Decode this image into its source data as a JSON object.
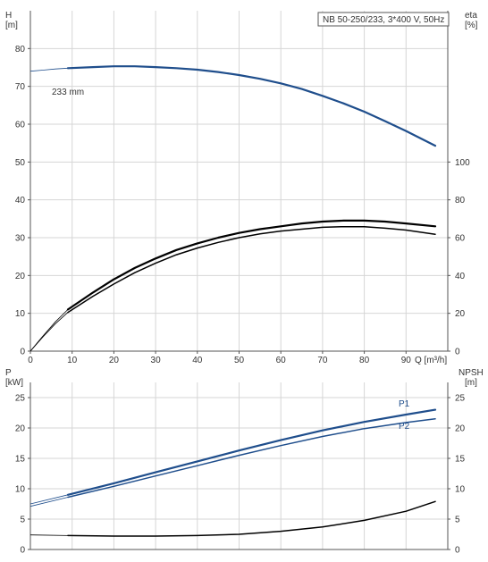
{
  "chart_data": [
    {
      "type": "line",
      "panel": "top",
      "title": "NB 50-250/233, 3*400 V, 50Hz",
      "xlabel": "Q [m³/h]",
      "ylabel_left": [
        "H",
        "[m]"
      ],
      "ylabel_right": [
        "eta",
        "[%]"
      ],
      "xlim": [
        0,
        100
      ],
      "ylim_left": [
        0,
        90
      ],
      "ylim_right": [
        0,
        180
      ],
      "x_ticks": [
        0,
        10,
        20,
        30,
        40,
        50,
        60,
        70,
        80,
        90
      ],
      "y_ticks_left": [
        0,
        10,
        20,
        30,
        40,
        50,
        60,
        70,
        80
      ],
      "y_ticks_right": [
        0,
        20,
        40,
        60,
        80,
        100
      ],
      "grid": true,
      "annotations": [
        {
          "text": "233 mm",
          "x": 9,
          "y": 75.5
        }
      ],
      "series": [
        {
          "name": "233 mm",
          "axis": "left",
          "color": "#1f4e8c",
          "x": [
            9,
            15,
            20,
            25,
            30,
            35,
            40,
            45,
            50,
            55,
            60,
            65,
            70,
            75,
            80,
            85,
            90,
            97
          ],
          "y": [
            74.8,
            75.1,
            75.3,
            75.3,
            75.1,
            74.8,
            74.4,
            73.8,
            73.0,
            72.0,
            70.8,
            69.3,
            67.5,
            65.5,
            63.3,
            60.8,
            58.2,
            54.3
          ],
          "ext_x": [
            0,
            3,
            6,
            9
          ],
          "ext_y": [
            74.0,
            74.3,
            74.6,
            74.8
          ]
        },
        {
          "axis": "right",
          "color": "#000000",
          "x": [
            9,
            15,
            20,
            25,
            30,
            35,
            40,
            45,
            50,
            55,
            60,
            65,
            70,
            75,
            80,
            85,
            90,
            97
          ],
          "y": [
            22.0,
            31.0,
            38.0,
            44.0,
            49.0,
            53.5,
            57.0,
            60.0,
            62.5,
            64.5,
            66.0,
            67.5,
            68.5,
            69.0,
            69.0,
            68.5,
            67.5,
            66.0
          ],
          "ext_x": [
            0,
            3,
            6,
            9
          ],
          "ext_y": [
            0,
            8.0,
            15.5,
            22.0
          ]
        },
        {
          "axis": "right",
          "color": "#000000",
          "x": [
            9,
            15,
            20,
            25,
            30,
            35,
            40,
            45,
            50,
            55,
            60,
            65,
            70,
            75,
            80,
            85,
            90,
            97
          ],
          "y": [
            20.5,
            29.0,
            35.5,
            41.5,
            46.5,
            51.0,
            54.5,
            57.5,
            60.0,
            62.0,
            63.5,
            64.5,
            65.5,
            65.8,
            65.8,
            65.0,
            64.0,
            61.8
          ],
          "ext_x": [
            0,
            3,
            6,
            9
          ],
          "ext_y": [
            0,
            7.5,
            14.5,
            20.5
          ]
        }
      ]
    },
    {
      "type": "line",
      "panel": "bottom",
      "xlim": [
        0,
        100
      ],
      "ylabel_left": [
        "P",
        "[kW]"
      ],
      "ylabel_right": [
        "NPSH",
        "[m]"
      ],
      "ylim_left": [
        0,
        27.5
      ],
      "ylim_right": [
        0,
        27.5
      ],
      "y_ticks_left": [
        0,
        5,
        10,
        15,
        20,
        25
      ],
      "y_ticks_right": [
        0,
        5,
        10,
        15,
        20,
        25
      ],
      "grid": true,
      "series": [
        {
          "name": "P1",
          "axis": "left",
          "color": "#1f4e8c",
          "x": [
            9,
            20,
            30,
            40,
            50,
            60,
            70,
            80,
            90,
            97
          ],
          "y": [
            9.0,
            10.9,
            12.7,
            14.5,
            16.3,
            18.0,
            19.6,
            21.0,
            22.2,
            23.0
          ],
          "ext_x": [
            0,
            9
          ],
          "ext_y": [
            7.5,
            9.0
          ]
        },
        {
          "name": "P2",
          "axis": "left",
          "color": "#1f4e8c",
          "x": [
            9,
            20,
            30,
            40,
            50,
            60,
            70,
            80,
            90,
            97
          ],
          "y": [
            8.6,
            10.4,
            12.1,
            13.8,
            15.5,
            17.1,
            18.6,
            19.9,
            20.9,
            21.5
          ],
          "ext_x": [
            0,
            9
          ],
          "ext_y": [
            7.1,
            8.6
          ]
        },
        {
          "axis": "right",
          "color": "#000000",
          "x": [
            9,
            20,
            30,
            40,
            50,
            60,
            70,
            80,
            90,
            97
          ],
          "y": [
            2.3,
            2.2,
            2.2,
            2.3,
            2.5,
            3.0,
            3.7,
            4.8,
            6.3,
            7.9
          ],
          "ext_x": [
            0,
            9
          ],
          "ext_y": [
            2.4,
            2.3
          ]
        }
      ]
    }
  ]
}
